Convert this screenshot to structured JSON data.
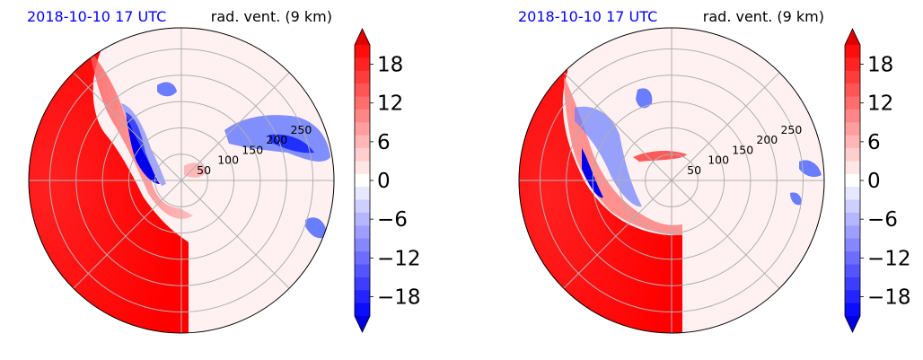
{
  "colors": {
    "title_date": "#0000ff",
    "positive": "#ff0000",
    "negative": "#0000ff"
  },
  "chart_data": [
    {
      "type": "heatmap",
      "projection": "polar",
      "title_left": "2018-10-10 17 UTC",
      "title_right": "rad. vent. (9 km)",
      "radial_ticks": [
        "50",
        "100",
        "150",
        "200",
        "250"
      ],
      "radial_values": [
        50,
        100,
        150,
        200,
        250
      ],
      "rmax": 290,
      "grid": true,
      "colorbar": {
        "ticks": [
          "18",
          "12",
          "6",
          "0",
          "−6",
          "−12",
          "−18"
        ],
        "values": [
          18,
          12,
          6,
          0,
          -6,
          -12,
          -18
        ],
        "vmin": -21,
        "vmax": 21,
        "extend": "both",
        "colormap": "bwr"
      }
    },
    {
      "type": "heatmap",
      "projection": "polar",
      "title_left": "2018-10-10 17 UTC",
      "title_right": "rad. vent. (9 km)",
      "radial_ticks": [
        "50",
        "100",
        "150",
        "200",
        "250"
      ],
      "radial_values": [
        50,
        100,
        150,
        200,
        250
      ],
      "rmax": 290,
      "grid": true,
      "colorbar": {
        "ticks": [
          "18",
          "12",
          "6",
          "0",
          "−6",
          "−12",
          "−18"
        ],
        "values": [
          18,
          12,
          6,
          0,
          -6,
          -12,
          -18
        ],
        "vmin": -21,
        "vmax": 21,
        "extend": "both",
        "colormap": "bwr"
      }
    }
  ]
}
